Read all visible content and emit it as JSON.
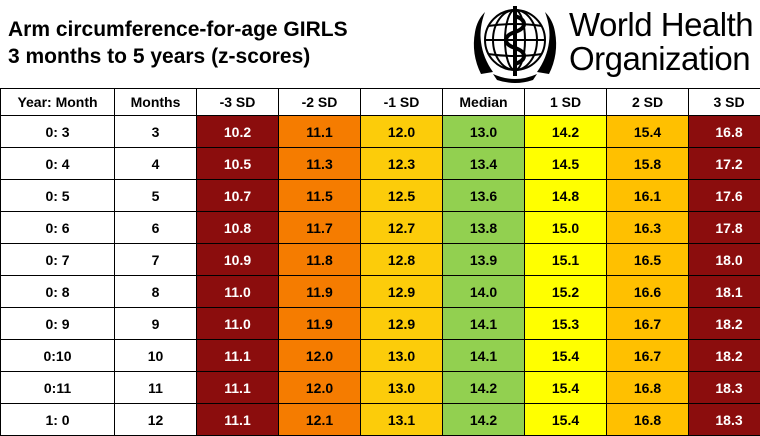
{
  "title": {
    "line1": "Arm circumference-for-age GIRLS",
    "line2": "3 months to 5 years (z-scores)"
  },
  "logo": {
    "icon": "who-emblem-icon",
    "line1": "World Health",
    "line2": "Organization"
  },
  "table": {
    "headers": [
      "Year: Month",
      "Months",
      "-3 SD",
      "-2 SD",
      "-1 SD",
      "Median",
      "1 SD",
      "2 SD",
      "3 SD"
    ],
    "rows": [
      [
        "0: 3",
        "3",
        "10.2",
        "11.1",
        "12.0",
        "13.0",
        "14.2",
        "15.4",
        "16.8"
      ],
      [
        "0: 4",
        "4",
        "10.5",
        "11.3",
        "12.3",
        "13.4",
        "14.5",
        "15.8",
        "17.2"
      ],
      [
        "0: 5",
        "5",
        "10.7",
        "11.5",
        "12.5",
        "13.6",
        "14.8",
        "16.1",
        "17.6"
      ],
      [
        "0: 6",
        "6",
        "10.8",
        "11.7",
        "12.7",
        "13.8",
        "15.0",
        "16.3",
        "17.8"
      ],
      [
        "0: 7",
        "7",
        "10.9",
        "11.8",
        "12.8",
        "13.9",
        "15.1",
        "16.5",
        "18.0"
      ],
      [
        "0: 8",
        "8",
        "11.0",
        "11.9",
        "12.9",
        "14.0",
        "15.2",
        "16.6",
        "18.1"
      ],
      [
        "0: 9",
        "9",
        "11.0",
        "11.9",
        "12.9",
        "14.1",
        "15.3",
        "16.7",
        "18.2"
      ],
      [
        "0:10",
        "10",
        "11.1",
        "12.0",
        "13.0",
        "14.1",
        "15.4",
        "16.7",
        "18.2"
      ],
      [
        "0:11",
        "11",
        "11.1",
        "12.0",
        "13.0",
        "14.2",
        "15.4",
        "16.8",
        "18.3"
      ],
      [
        "1: 0",
        "12",
        "11.1",
        "12.1",
        "13.1",
        "14.2",
        "15.4",
        "16.8",
        "18.3"
      ]
    ],
    "column_colors": [
      "#ffffff",
      "#ffffff",
      "#8b0d0d",
      "#f57c00",
      "#fccc0a",
      "#92d050",
      "#ffff00",
      "#ffc000",
      "#8b0d0d"
    ]
  }
}
